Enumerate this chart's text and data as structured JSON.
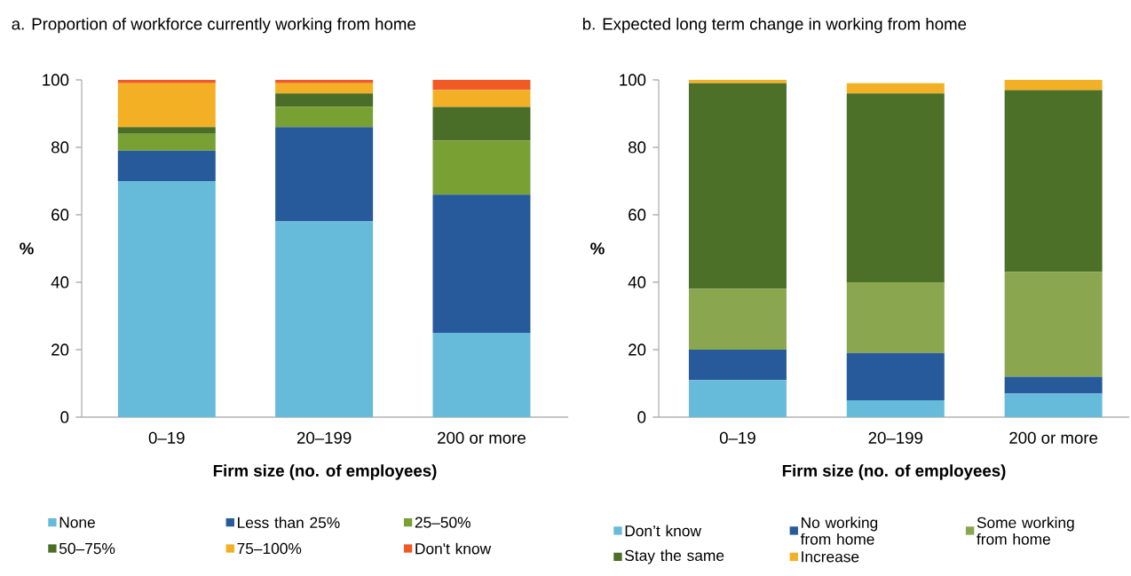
{
  "chart_data": [
    {
      "type": "bar",
      "stacked": true,
      "legend": "bottom",
      "title": "a. Proportion of workforce currently working from home",
      "xlabel": "Firm size (no. of employees)",
      "ylabel": "%",
      "categories": [
        "0–19",
        "20–199",
        "200 or more"
      ],
      "ylim": [
        0,
        100
      ],
      "yticks": [
        0,
        20,
        40,
        60,
        80,
        100
      ],
      "series": [
        {
          "name": "None",
          "color": "#66bbdb",
          "values": [
            70,
            58,
            25
          ]
        },
        {
          "name": "Less than 25%",
          "color": "#265a9a",
          "values": [
            9,
            28,
            41
          ]
        },
        {
          "name": "25–50%",
          "color": "#78a032",
          "values": [
            5,
            6,
            16
          ]
        },
        {
          "name": "50–75%",
          "color": "#4a6e28",
          "values": [
            2,
            4,
            10
          ]
        },
        {
          "name": "75–100%",
          "color": "#f3b025",
          "values": [
            13,
            3,
            5
          ]
        },
        {
          "name": "Don't know",
          "color": "#f15a24",
          "values": [
            1,
            1,
            3
          ]
        }
      ]
    },
    {
      "type": "bar",
      "stacked": true,
      "legend": "bottom",
      "title": "b. Expected long term change in working from home",
      "xlabel": "Firm size (no. of employees)",
      "ylabel": "%",
      "categories": [
        "0–19",
        "20–199",
        "200 or more"
      ],
      "ylim": [
        0,
        100
      ],
      "yticks": [
        0,
        20,
        40,
        60,
        80,
        100
      ],
      "series": [
        {
          "name": "Don’t know",
          "color": "#66bbdb",
          "values": [
            11,
            5,
            7
          ]
        },
        {
          "name": "No working from home",
          "color": "#265a9a",
          "values": [
            9,
            14,
            5
          ]
        },
        {
          "name": "Some working from home",
          "color": "#8aa64f",
          "values": [
            18,
            21,
            31
          ]
        },
        {
          "name": "Stay the same",
          "color": "#4d7028",
          "values": [
            61,
            56,
            54
          ]
        },
        {
          "name": "Increase",
          "color": "#f3b025",
          "values": [
            1,
            3,
            3
          ]
        }
      ]
    }
  ]
}
